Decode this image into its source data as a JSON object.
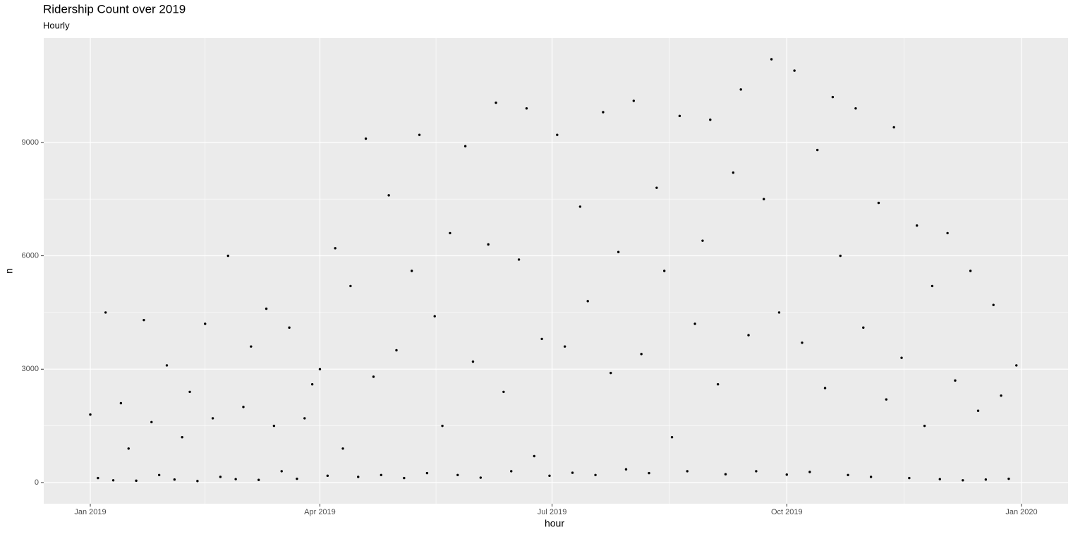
{
  "chart_data": {
    "type": "scatter",
    "title": "Ridership Count over 2019",
    "subtitle": "Hourly",
    "x_label": "hour",
    "y_label": "n",
    "color": "#000000",
    "grid": true,
    "xlim": [
      -18.25,
      383.25
    ],
    "xticks": [
      {
        "value": 0,
        "label": "Jan 2019"
      },
      {
        "value": 90,
        "label": "Apr 2019"
      },
      {
        "value": 181,
        "label": "Jul 2019"
      },
      {
        "value": 273,
        "label": "Oct 2019"
      },
      {
        "value": 365,
        "label": "Jan 2020"
      }
    ],
    "ylim": [
      -560,
      11760
    ],
    "yticks": [
      0,
      3000,
      6000,
      9000
    ],
    "x": [
      0,
      3,
      6,
      9,
      12,
      15,
      18,
      21,
      24,
      27,
      30,
      33,
      36,
      39,
      42,
      45,
      48,
      51,
      54,
      57,
      60,
      63,
      66,
      69,
      72,
      75,
      78,
      81,
      84,
      87,
      90,
      93,
      96,
      99,
      102,
      105,
      108,
      111,
      114,
      117,
      120,
      123,
      126,
      129,
      132,
      135,
      138,
      141,
      144,
      147,
      150,
      153,
      156,
      159,
      162,
      165,
      168,
      171,
      174,
      177,
      180,
      183,
      186,
      189,
      192,
      195,
      198,
      201,
      204,
      207,
      210,
      213,
      216,
      219,
      222,
      225,
      228,
      231,
      234,
      237,
      240,
      243,
      246,
      249,
      252,
      255,
      258,
      261,
      264,
      267,
      270,
      273,
      276,
      279,
      282,
      285,
      288,
      291,
      294,
      297,
      300,
      303,
      306,
      309,
      312,
      315,
      318,
      321,
      324,
      327,
      330,
      333,
      336,
      339,
      342,
      345,
      348,
      351,
      354,
      357,
      360,
      363
    ],
    "values": [
      1800,
      120,
      4500,
      60,
      2100,
      900,
      50,
      4300,
      1600,
      200,
      3100,
      80,
      1200,
      2400,
      40,
      4200,
      1700,
      150,
      6000,
      90,
      2000,
      3600,
      70,
      4600,
      1500,
      300,
      4100,
      100,
      1700,
      2600,
      3000,
      180,
      6200,
      900,
      5200,
      150,
      9100,
      2800,
      200,
      7600,
      3500,
      120,
      5600,
      9200,
      250,
      4400,
      1500,
      6600,
      200,
      8900,
      3200,
      130,
      6300,
      10050,
      2400,
      300,
      5900,
      9900,
      700,
      3800,
      180,
      9200,
      3600,
      260,
      7300,
      4800,
      200,
      9800,
      2900,
      6100,
      350,
      10100,
      3400,
      250,
      7800,
      5600,
      1200,
      9700,
      300,
      4200,
      6400,
      9600,
      2600,
      220,
      8200,
      10400,
      3900,
      300,
      7500,
      11200,
      4500,
      210,
      10900,
      3700,
      280,
      8800,
      2500,
      10200,
      6000,
      200,
      9900,
      4100,
      150,
      7400,
      2200,
      9400,
      3300,
      120,
      6800,
      1500,
      5200,
      90,
      6600,
      2700,
      60,
      5600,
      1900,
      80,
      4700,
      2300,
      100,
      3100
    ]
  }
}
